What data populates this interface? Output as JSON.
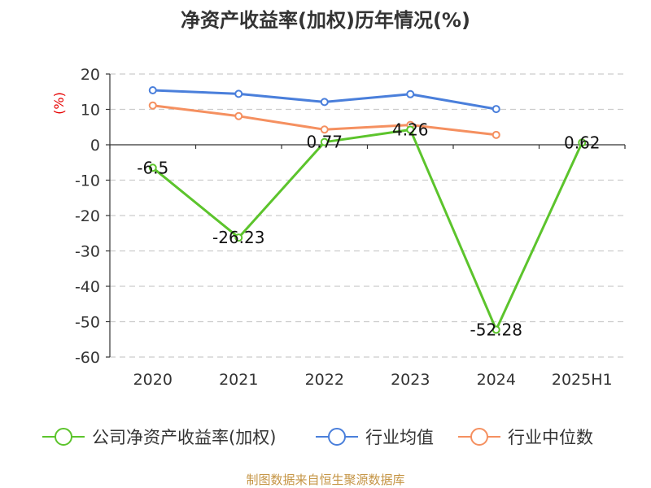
{
  "chart_data": {
    "type": "line",
    "title": "净资产收益率(加权)历年情况(%)",
    "ylabel": "(%)",
    "xlabel": "",
    "categories": [
      "2020",
      "2021",
      "2022",
      "2023",
      "2024",
      "2025H1"
    ],
    "yticks": [
      20,
      10,
      0,
      -10,
      -20,
      -30,
      -40,
      -50,
      -60
    ],
    "ylim": [
      -60,
      20
    ],
    "grid": true,
    "legend_position": "bottom",
    "series": [
      {
        "name": "公司净资产收益率(加权)",
        "color": "#5cc42c",
        "values": [
          -6.5,
          -26.23,
          0.77,
          4.26,
          -52.28,
          0.62
        ],
        "labels": [
          "-6.5",
          "-26.23",
          "0.77",
          "4.26",
          "-52.28",
          "0.62"
        ]
      },
      {
        "name": "行业均值",
        "color": "#4a7fdb",
        "values": [
          15.4,
          14.4,
          12.1,
          14.3,
          10.1,
          null
        ]
      },
      {
        "name": "行业中位数",
        "color": "#f59060",
        "values": [
          11.1,
          8.1,
          4.3,
          5.6,
          2.8,
          null
        ]
      }
    ],
    "source": "制图数据来自恒生聚源数据库"
  }
}
